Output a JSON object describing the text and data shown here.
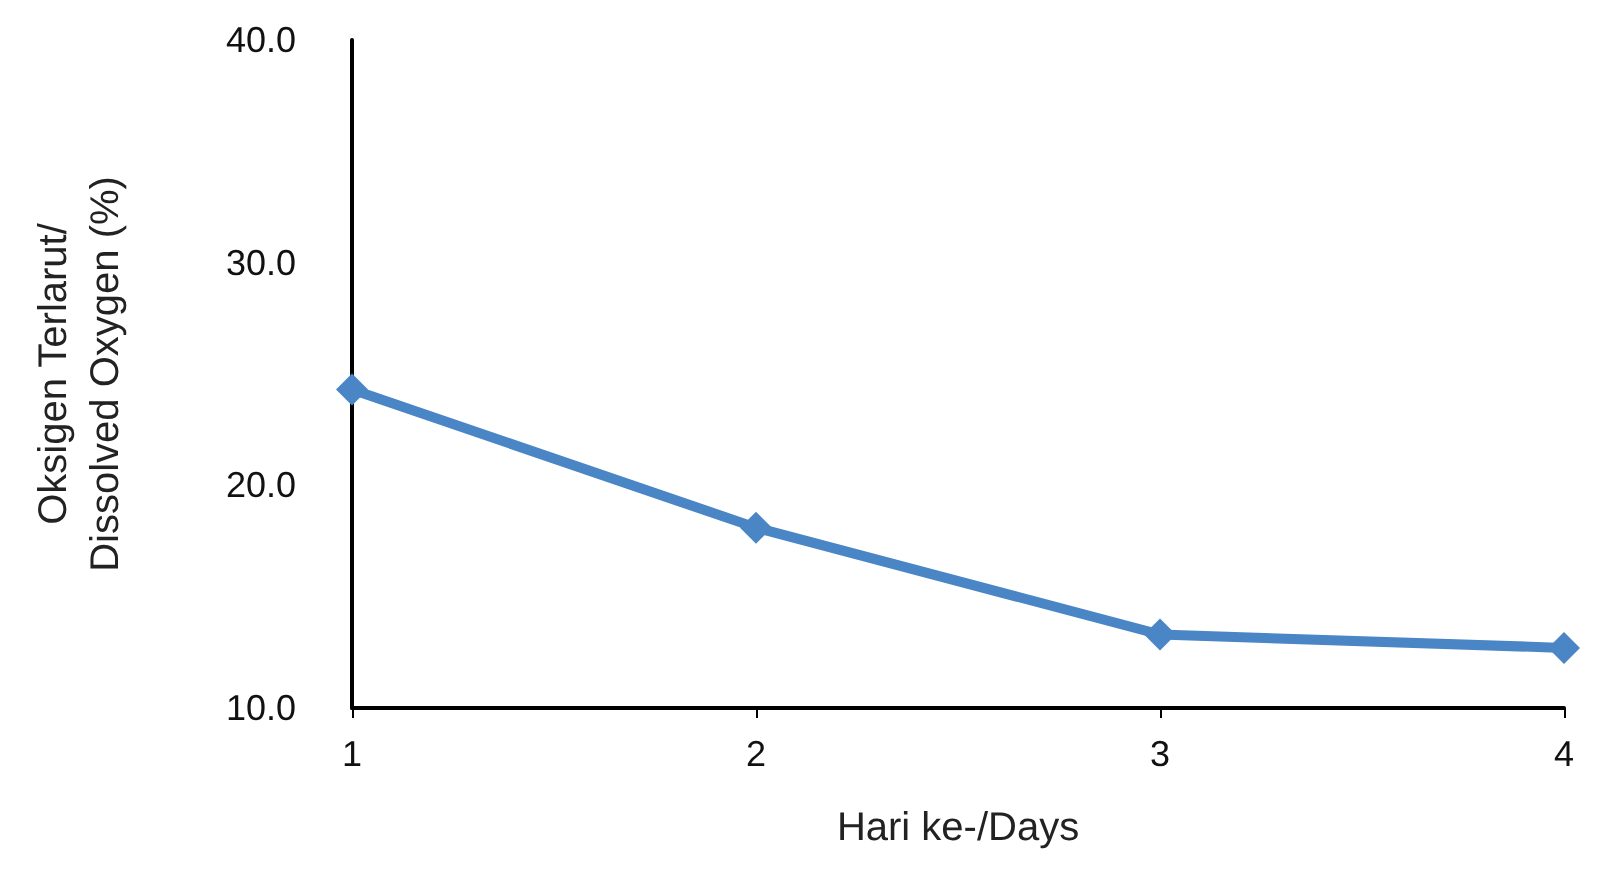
{
  "chart_data": {
    "type": "line",
    "xlabel": "Hari ke-/Days",
    "ylabel": "Oksigen Terlarut/\nDissolved Oxygen (%)",
    "x": [
      1,
      2,
      3,
      4
    ],
    "series": [
      {
        "color": "#4a86c5",
        "values": [
          24.3,
          18.1,
          13.3,
          12.7
        ]
      }
    ],
    "xlim": [
      1,
      4
    ],
    "xticks": [
      1,
      2,
      3,
      4
    ],
    "ylim": [
      10,
      40
    ],
    "yticks": [
      {
        "value": 10,
        "label": "10.0"
      },
      {
        "value": 20,
        "label": "20.0"
      },
      {
        "value": 30,
        "label": "30.0"
      },
      {
        "value": 40,
        "label": "40.0"
      }
    ],
    "grid": false,
    "marker": "diamond",
    "line_style": "solid"
  }
}
